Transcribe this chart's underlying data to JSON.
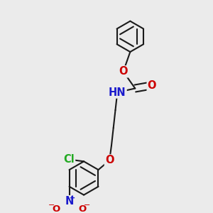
{
  "bg_color": "#ebebeb",
  "bond_color": "#1a1a1a",
  "bond_width": 1.5,
  "dbo": 0.018,
  "atom_colors": {
    "O": "#cc0000",
    "N_amine": "#1a1acc",
    "N_nitro": "#1a1acc",
    "Cl": "#22aa22",
    "H": "#707070"
  },
  "fs": 10.5
}
